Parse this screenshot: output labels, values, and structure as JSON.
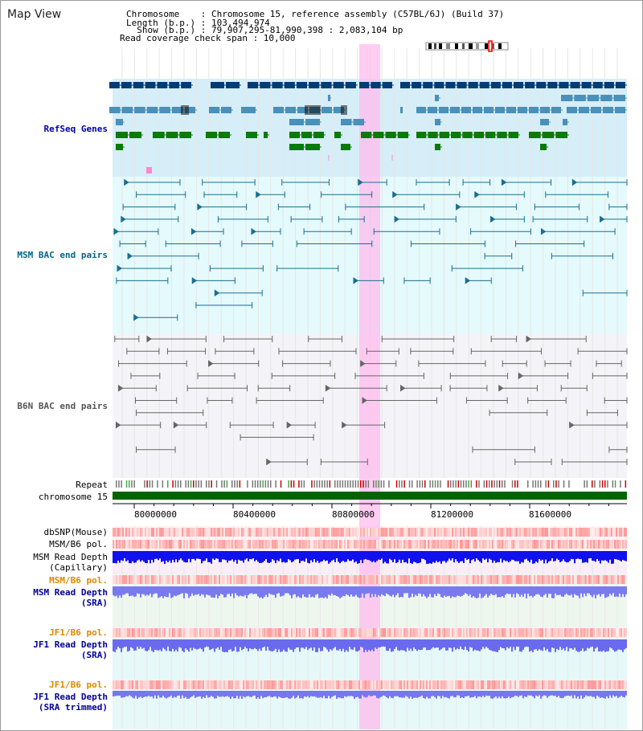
{
  "header": {
    "title": "Map View",
    "chromosome_line": "Chromosome    : Chromosome 15, reference assembly (C57BL/6J) (Build 37)",
    "length_line": "Length (b.p.) : 103,494,974",
    "show_line": "  Show (b.p.) : 79,907,295-81,990,398 : 2,083,104 bp",
    "coverage_line": "Read coverage check span : 10,000"
  },
  "tracks": {
    "refseq": "RefSeq Genes",
    "msm_bac": "MSM BAC end pairs",
    "b6n_bac": "B6N BAC end pairs",
    "repeat": "Repeat",
    "chromosome": "chromosome 15",
    "dbsnp": "dbSNP(Mouse)",
    "msm_b6_pol_1": "MSM/B6 pol.",
    "msm_read_depth_cap": "MSM Read Depth\n(Capillary)",
    "msm_b6_pol_2": "MSM/B6 pol.",
    "msm_read_depth_sra": "MSM Read Depth\n(SRA)",
    "jf1_b6_pol_1": "JF1/B6 pol.",
    "jf1_read_depth_sra": "JF1 Read Depth\n(SRA)",
    "jf1_b6_pol_2": "JF1/B6 pol.",
    "jf1_read_depth_trim": "JF1 Read Depth\n(SRA trimmed)"
  },
  "axis": {
    "ticks": [
      "80000000",
      "80400000",
      "80800000",
      "81200000",
      "81600000"
    ]
  },
  "colors": {
    "refseq_label": "#0000aa",
    "msm_bac_label": "#006688",
    "b6n_bac_label": "#555555",
    "pol_orange": "#dd8800",
    "depth_blue": "#000099",
    "highlight": "#ffbbee",
    "refseq_bg": "#d6eef8",
    "msm_bg": "#e4fafc",
    "b6n_bg": "#f4f4f8",
    "chrom_green": "#006400"
  }
}
